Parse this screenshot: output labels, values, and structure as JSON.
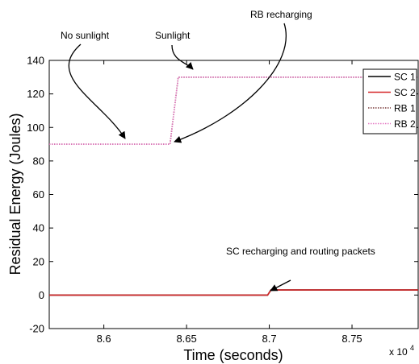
{
  "chart_data": {
    "type": "line",
    "xlabel": "Time (seconds)",
    "ylabel": "Residual Energy (Joules)",
    "x_exponent_label": "x 10",
    "x_exponent_power": "4",
    "xlim": [
      8.567,
      8.79
    ],
    "ylim": [
      -20,
      140
    ],
    "x_ticks": [
      8.6,
      8.65,
      8.7,
      8.75
    ],
    "x_tick_labels": [
      "8.6",
      "8.65",
      "8.7",
      "8.75"
    ],
    "y_ticks": [
      -20,
      0,
      20,
      40,
      60,
      80,
      100,
      120,
      140
    ],
    "y_tick_labels": [
      "-20",
      "0",
      "20",
      "40",
      "60",
      "80",
      "100",
      "120",
      "140"
    ],
    "legend_position": "top-right",
    "series": [
      {
        "name": "SC 1",
        "color": "#000000",
        "style": "solid",
        "x": [
          8.567,
          8.699,
          8.701,
          8.79
        ],
        "y": [
          0,
          0,
          3,
          3
        ]
      },
      {
        "name": "SC 2",
        "color": "#d62728",
        "style": "solid",
        "x": [
          8.567,
          8.699,
          8.701,
          8.79
        ],
        "y": [
          0,
          0,
          3,
          3
        ]
      },
      {
        "name": "RB 1",
        "color": "#7a3b3b",
        "style": "dotted",
        "x": [
          8.567,
          8.64,
          8.645,
          8.79
        ],
        "y": [
          90,
          90,
          130,
          130
        ]
      },
      {
        "name": "RB 2",
        "color": "#e377c2",
        "style": "dotted",
        "x": [
          8.567,
          8.64,
          8.645,
          8.79
        ],
        "y": [
          90,
          90,
          130,
          130
        ]
      }
    ],
    "annotations": [
      {
        "text": "No sunlight",
        "target_x": 8.612,
        "target_y": 90
      },
      {
        "text": "Sunlight",
        "target_x": 8.645,
        "target_y": 130
      },
      {
        "text": "RB recharging",
        "target_x": 8.642,
        "target_y": 105
      },
      {
        "text": "SC recharging and routing packets",
        "target_x": 8.7,
        "target_y": 2
      }
    ]
  }
}
